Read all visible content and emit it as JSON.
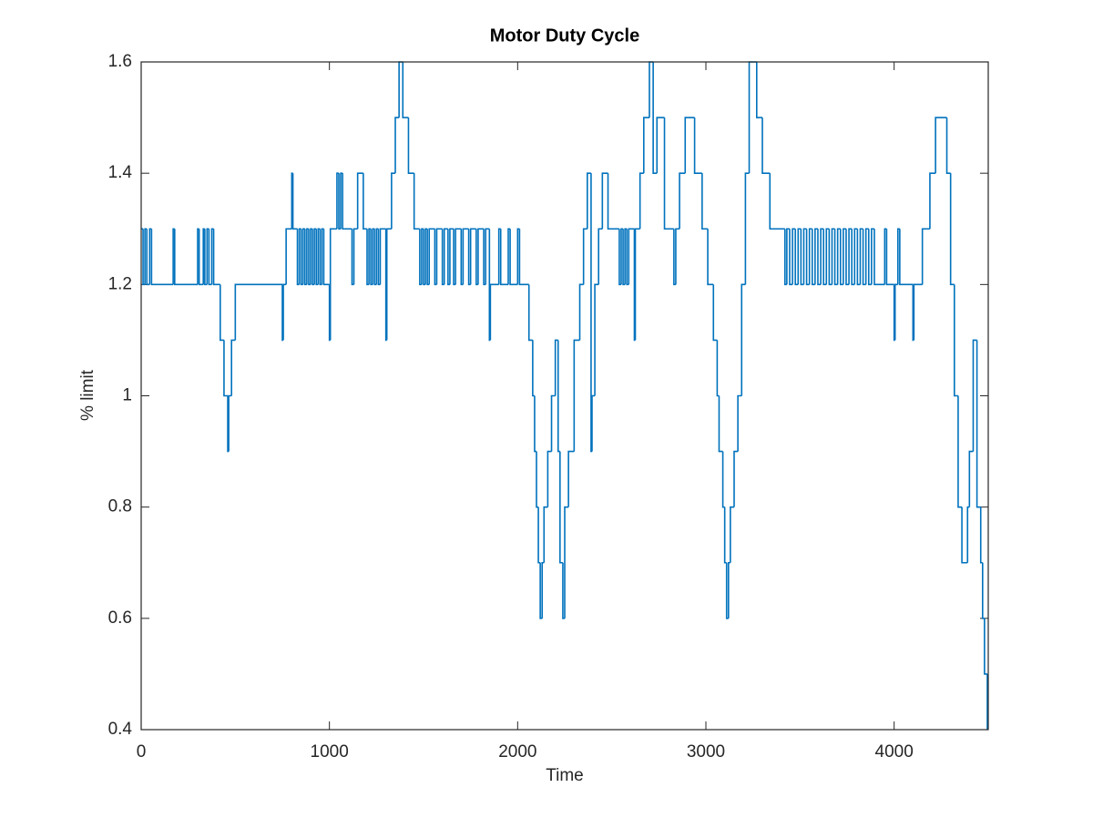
{
  "chart_data": {
    "type": "line",
    "drawstyle": "steps-post",
    "title": "Motor Duty Cycle",
    "xlabel": "Time",
    "ylabel": "% limit",
    "color": "#0072bd",
    "grid": false,
    "xlim": [
      0,
      4500
    ],
    "xticks": [
      0,
      1000,
      2000,
      3000,
      4000
    ],
    "ylim": [
      0.4,
      1.6
    ],
    "yticks": [
      0.4,
      0.6,
      0.8,
      1,
      1.2,
      1.4,
      1.6
    ],
    "x": [
      0,
      10,
      20,
      30,
      45,
      55,
      170,
      178,
      300,
      308,
      330,
      338,
      350,
      360,
      375,
      385,
      420,
      440,
      460,
      465,
      480,
      500,
      750,
      755,
      770,
      800,
      806,
      830,
      840,
      850,
      860,
      870,
      880,
      890,
      900,
      910,
      920,
      930,
      940,
      950,
      960,
      970,
      1000,
      1005,
      1040,
      1050,
      1060,
      1070,
      1120,
      1130,
      1150,
      1180,
      1200,
      1210,
      1220,
      1230,
      1240,
      1250,
      1260,
      1270,
      1300,
      1305,
      1330,
      1350,
      1370,
      1390,
      1420,
      1450,
      1480,
      1490,
      1500,
      1510,
      1520,
      1530,
      1560,
      1570,
      1600,
      1610,
      1630,
      1640,
      1660,
      1670,
      1700,
      1710,
      1740,
      1750,
      1780,
      1790,
      1820,
      1830,
      1850,
      1855,
      1900,
      1910,
      1950,
      1960,
      2000,
      2010,
      2060,
      2080,
      2090,
      2100,
      2110,
      2120,
      2130,
      2140,
      2160,
      2180,
      2200,
      2215,
      2225,
      2240,
      2250,
      2270,
      2300,
      2330,
      2350,
      2370,
      2390,
      2395,
      2410,
      2430,
      2450,
      2480,
      2540,
      2550,
      2560,
      2570,
      2580,
      2590,
      2620,
      2625,
      2650,
      2670,
      2700,
      2720,
      2740,
      2780,
      2830,
      2840,
      2860,
      2890,
      2940,
      2980,
      3010,
      3040,
      3060,
      3070,
      3090,
      3100,
      3110,
      3120,
      3130,
      3150,
      3170,
      3190,
      3210,
      3230,
      3270,
      3300,
      3340,
      3420,
      3430,
      3445,
      3460,
      3475,
      3490,
      3505,
      3520,
      3535,
      3550,
      3565,
      3580,
      3595,
      3610,
      3625,
      3640,
      3655,
      3670,
      3685,
      3700,
      3715,
      3730,
      3745,
      3760,
      3775,
      3790,
      3805,
      3820,
      3835,
      3850,
      3865,
      3880,
      3895,
      3950,
      3960,
      4000,
      4005,
      4020,
      4030,
      4100,
      4105,
      4150,
      4190,
      4220,
      4280,
      4300,
      4320,
      4340,
      4360,
      4390,
      4400,
      4420,
      4440,
      4460,
      4470,
      4480,
      4495
    ],
    "values": [
      1.3,
      1.2,
      1.3,
      1.2,
      1.3,
      1.2,
      1.3,
      1.2,
      1.3,
      1.2,
      1.3,
      1.2,
      1.3,
      1.2,
      1.3,
      1.2,
      1.1,
      1.0,
      0.9,
      1.0,
      1.1,
      1.2,
      1.1,
      1.2,
      1.3,
      1.4,
      1.3,
      1.2,
      1.3,
      1.2,
      1.3,
      1.2,
      1.3,
      1.2,
      1.3,
      1.2,
      1.3,
      1.2,
      1.3,
      1.2,
      1.3,
      1.2,
      1.1,
      1.3,
      1.4,
      1.3,
      1.4,
      1.3,
      1.2,
      1.3,
      1.4,
      1.3,
      1.2,
      1.3,
      1.2,
      1.3,
      1.2,
      1.3,
      1.2,
      1.3,
      1.1,
      1.3,
      1.4,
      1.5,
      1.6,
      1.5,
      1.4,
      1.3,
      1.2,
      1.3,
      1.2,
      1.3,
      1.2,
      1.3,
      1.2,
      1.3,
      1.2,
      1.3,
      1.2,
      1.3,
      1.2,
      1.3,
      1.2,
      1.3,
      1.2,
      1.3,
      1.2,
      1.3,
      1.2,
      1.3,
      1.1,
      1.2,
      1.3,
      1.2,
      1.3,
      1.2,
      1.3,
      1.2,
      1.1,
      1.0,
      0.9,
      0.8,
      0.7,
      0.6,
      0.7,
      0.8,
      0.9,
      1.0,
      1.1,
      0.9,
      0.7,
      0.6,
      0.8,
      0.9,
      1.1,
      1.2,
      1.3,
      1.4,
      0.9,
      1.0,
      1.2,
      1.3,
      1.4,
      1.3,
      1.2,
      1.3,
      1.2,
      1.3,
      1.2,
      1.3,
      1.1,
      1.3,
      1.4,
      1.5,
      1.6,
      1.4,
      1.5,
      1.3,
      1.2,
      1.3,
      1.4,
      1.5,
      1.4,
      1.3,
      1.2,
      1.1,
      1.0,
      0.9,
      0.8,
      0.7,
      0.6,
      0.7,
      0.8,
      0.9,
      1.0,
      1.2,
      1.4,
      1.6,
      1.5,
      1.4,
      1.3,
      1.2,
      1.3,
      1.2,
      1.3,
      1.2,
      1.3,
      1.2,
      1.3,
      1.2,
      1.3,
      1.2,
      1.3,
      1.2,
      1.3,
      1.2,
      1.3,
      1.2,
      1.3,
      1.2,
      1.3,
      1.2,
      1.3,
      1.2,
      1.3,
      1.2,
      1.3,
      1.2,
      1.3,
      1.2,
      1.3,
      1.2,
      1.3,
      1.2,
      1.3,
      1.2,
      1.1,
      1.2,
      1.3,
      1.2,
      1.1,
      1.2,
      1.3,
      1.4,
      1.5,
      1.4,
      1.2,
      1.0,
      0.8,
      0.7,
      0.8,
      0.9,
      1.1,
      0.8,
      0.7,
      0.6,
      0.5,
      0.4
    ]
  }
}
